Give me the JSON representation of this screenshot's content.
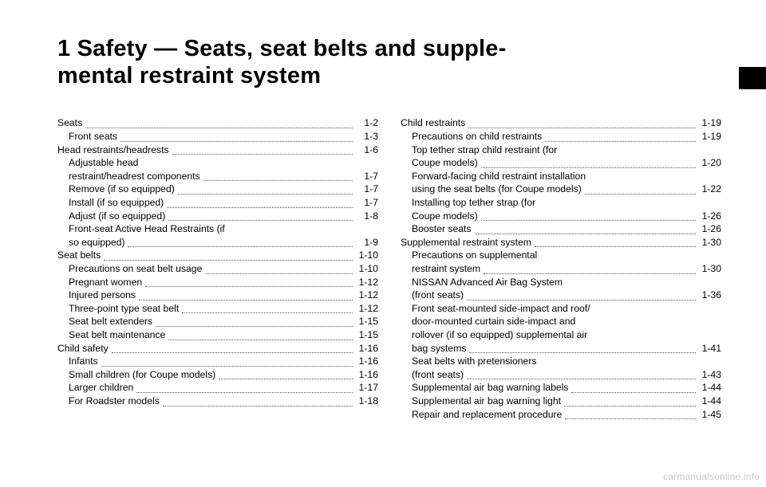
{
  "chapter": {
    "number": "1",
    "title_line1": "Safety — Seats, seat belts and supple-",
    "title_line2": "mental restraint system"
  },
  "watermark": "carmanualsonline.info",
  "toc": {
    "left": [
      {
        "label": "Seats",
        "page": "1-2",
        "indent": 0
      },
      {
        "label": "Front seats",
        "page": "1-3",
        "indent": 1
      },
      {
        "label": "Head restraints/headrests",
        "page": "1-6",
        "indent": 0
      },
      {
        "pre": "Adjustable head",
        "label": "restraint/headrest components",
        "page": "1-7",
        "indent": 1
      },
      {
        "label": "Remove (if so equipped)",
        "page": "1-7",
        "indent": 1
      },
      {
        "label": "Install (if so equipped)",
        "page": "1-7",
        "indent": 1
      },
      {
        "label": "Adjust (if so equipped)",
        "page": "1-8",
        "indent": 1
      },
      {
        "pre": "Front-seat Active Head Restraints (if",
        "label": "so equipped)",
        "page": "1-9",
        "indent": 1
      },
      {
        "label": "Seat belts",
        "page": "1-10",
        "indent": 0
      },
      {
        "label": "Precautions on seat belt usage",
        "page": "1-10",
        "indent": 1
      },
      {
        "label": "Pregnant women",
        "page": "1-12",
        "indent": 1
      },
      {
        "label": "Injured persons",
        "page": "1-12",
        "indent": 1
      },
      {
        "label": "Three-point type seat belt",
        "page": "1-12",
        "indent": 1
      },
      {
        "label": "Seat belt extenders",
        "page": "1-15",
        "indent": 1
      },
      {
        "label": "Seat belt maintenance",
        "page": "1-15",
        "indent": 1
      },
      {
        "label": "Child safety",
        "page": "1-16",
        "indent": 0
      },
      {
        "label": "Infants",
        "page": "1-16",
        "indent": 1
      },
      {
        "label": "Small children (for Coupe models)",
        "page": "1-16",
        "indent": 1
      },
      {
        "label": "Larger children",
        "page": "1-17",
        "indent": 1
      },
      {
        "label": "For Roadster models",
        "page": "1-18",
        "indent": 1
      }
    ],
    "right": [
      {
        "label": "Child restraints",
        "page": "1-19",
        "indent": 0
      },
      {
        "label": "Precautions on child restraints",
        "page": "1-19",
        "indent": 1
      },
      {
        "pre": "Top tether strap child restraint (for",
        "label": "Coupe models)",
        "page": "1-20",
        "indent": 1
      },
      {
        "pre": "Forward-facing child restraint installation",
        "label": "using the seat belts (for Coupe models)",
        "page": "1-22",
        "indent": 1
      },
      {
        "pre": "Installing top tether strap (for",
        "label": "Coupe models)",
        "page": "1-26",
        "indent": 1
      },
      {
        "label": "Booster seats",
        "page": "1-26",
        "indent": 1
      },
      {
        "label": "Supplemental restraint system",
        "page": "1-30",
        "indent": 0
      },
      {
        "pre": "Precautions on supplemental",
        "label": "restraint system",
        "page": "1-30",
        "indent": 1
      },
      {
        "pre": "NISSAN Advanced Air Bag System",
        "label": "(front seats)",
        "page": "1-36",
        "indent": 1
      },
      {
        "pre3": "Front seat-mounted side-impact and roof/",
        "pre2": "door-mounted curtain side-impact and",
        "pre": "rollover (if so equipped) supplemental air",
        "label": "bag systems",
        "page": "1-41",
        "indent": 1
      },
      {
        "pre": "Seat belts with pretensioners",
        "label": "(front seats)",
        "page": "1-43",
        "indent": 1
      },
      {
        "label": "Supplemental air bag warning labels",
        "page": "1-44",
        "indent": 1
      },
      {
        "label": "Supplemental air bag warning light",
        "page": "1-44",
        "indent": 1
      },
      {
        "label": "Repair and replacement procedure",
        "page": "1-45",
        "indent": 1
      }
    ]
  }
}
